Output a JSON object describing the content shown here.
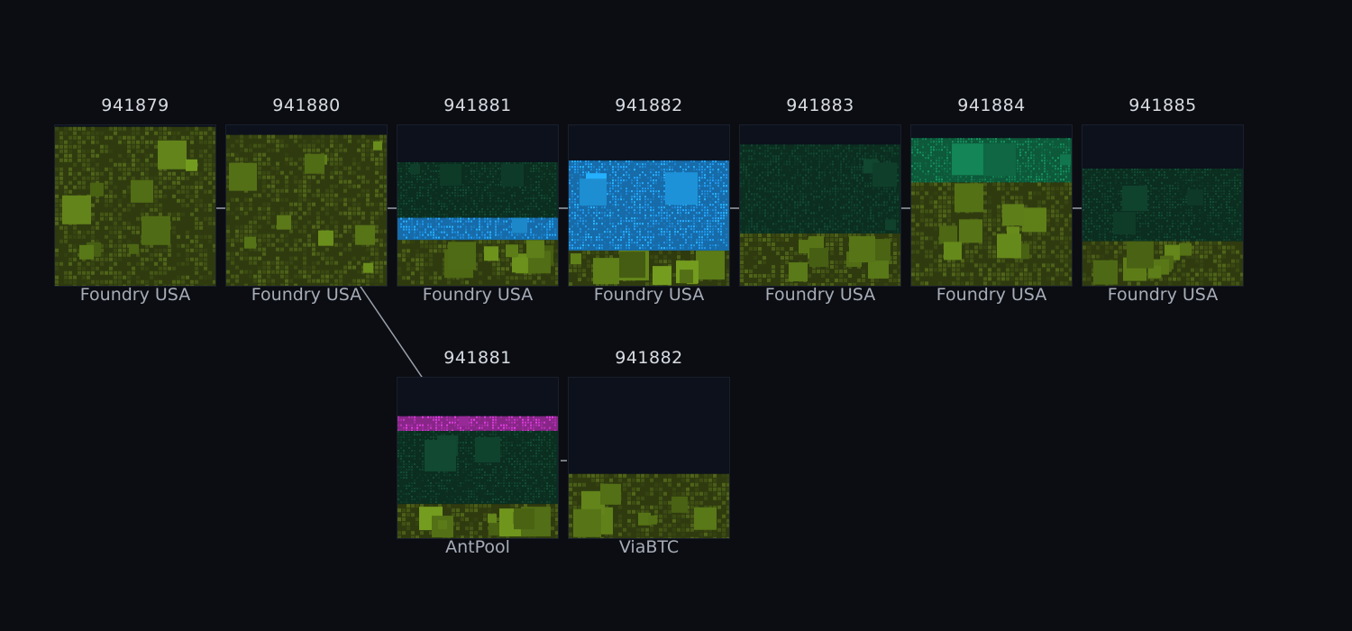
{
  "colors": {
    "background": "#0b0d12",
    "olive": "#3f4f14",
    "olive_light": "#5b7a18",
    "olive_bright": "#6a8f1c",
    "dark_green": "#0f3d2a",
    "green": "#11774d",
    "blue": "#1f8fe0",
    "blue_bright": "#22a6f5",
    "magenta": "#b532b5",
    "connector": "#9aa0aa"
  },
  "main_chain": [
    {
      "height": "941879",
      "pool": "Foundry USA",
      "fill": 0.99,
      "layers": [
        [
          "olive",
          1.0
        ]
      ]
    },
    {
      "height": "941880",
      "pool": "Foundry USA",
      "fill": 0.94,
      "layers": [
        [
          "olive",
          1.0
        ]
      ]
    },
    {
      "height": "941881",
      "pool": "Foundry USA",
      "fill": 0.77,
      "layers": [
        [
          "dark_green",
          0.45
        ],
        [
          "blue",
          0.18
        ],
        [
          "olive",
          0.37
        ]
      ]
    },
    {
      "height": "941882",
      "pool": "Foundry USA",
      "fill": 0.78,
      "layers": [
        [
          "blue",
          0.72
        ],
        [
          "olive",
          0.28
        ]
      ]
    },
    {
      "height": "941883",
      "pool": "Foundry USA",
      "fill": 0.88,
      "layers": [
        [
          "dark_green",
          0.63
        ],
        [
          "olive",
          0.37
        ]
      ]
    },
    {
      "height": "941884",
      "pool": "Foundry USA",
      "fill": 0.92,
      "layers": [
        [
          "green",
          0.3
        ],
        [
          "olive",
          0.7
        ]
      ]
    },
    {
      "height": "941885",
      "pool": "Foundry USA",
      "fill": 0.73,
      "layers": [
        [
          "dark_green",
          0.62
        ],
        [
          "olive",
          0.38
        ]
      ]
    }
  ],
  "fork_chain": [
    {
      "height": "941881",
      "pool": "AntPool",
      "fill": 0.76,
      "layers": [
        [
          "magenta",
          0.12
        ],
        [
          "dark_green",
          0.6
        ],
        [
          "olive",
          0.28
        ]
      ]
    },
    {
      "height": "941882",
      "pool": "ViaBTC",
      "fill": 0.4,
      "layers": [
        [
          "olive",
          1.0
        ]
      ]
    }
  ]
}
